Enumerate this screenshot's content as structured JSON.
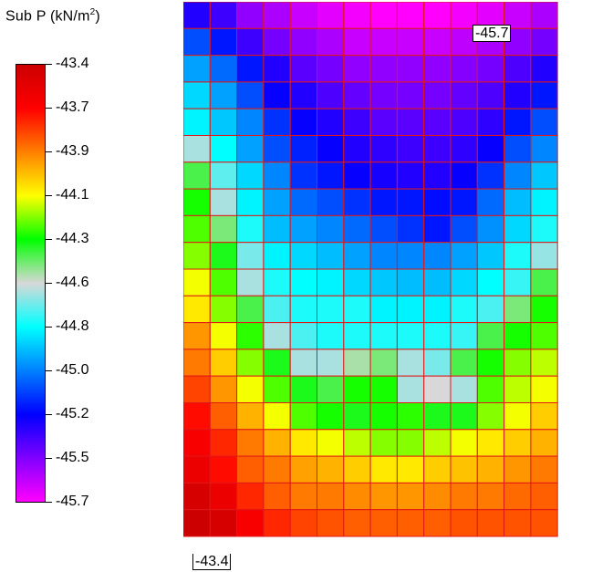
{
  "legend": {
    "title": "Sub P  (kN/m",
    "title_sup": "2",
    "title_end": ")",
    "ticks": [
      "-43.4",
      "-43.7",
      "-43.9",
      "-44.1",
      "-44.3",
      "-44.6",
      "-44.8",
      "-45.0",
      "-45.2",
      "-45.5",
      "-45.7"
    ],
    "gradient": [
      "#cc0000",
      "#ff0000",
      "#ff8000",
      "#ffff00",
      "#00ff00",
      "#d8d8d8",
      "#00ffff",
      "#0080ff",
      "#0000ff",
      "#8000ff",
      "#ff00ff"
    ]
  },
  "annotations": {
    "min_label": "-45.7",
    "max_label": "-43.4"
  },
  "chart_data": {
    "type": "heatmap",
    "title": "Sub P  (kN/m²)",
    "colorbar_range": [
      -45.7,
      -43.4
    ],
    "grid_line_color": "#e01818",
    "min_annotation": "-45.7",
    "max_annotation": "-43.4",
    "values": [
      [
        -45.3,
        -45.35,
        -45.5,
        -45.55,
        -45.6,
        -45.65,
        -45.68,
        -45.7,
        -45.7,
        -45.7,
        -45.68,
        -45.65,
        -45.6,
        -45.55
      ],
      [
        -45.1,
        -45.2,
        -45.35,
        -45.45,
        -45.5,
        -45.55,
        -45.6,
        -45.6,
        -45.6,
        -45.6,
        -45.58,
        -45.55,
        -45.5,
        -45.45
      ],
      [
        -44.95,
        -45.05,
        -45.2,
        -45.3,
        -45.4,
        -45.45,
        -45.5,
        -45.5,
        -45.5,
        -45.5,
        -45.48,
        -45.45,
        -45.38,
        -45.3
      ],
      [
        -44.85,
        -44.95,
        -45.1,
        -45.25,
        -45.3,
        -45.38,
        -45.42,
        -45.45,
        -45.45,
        -45.45,
        -45.42,
        -45.38,
        -45.3,
        -45.2
      ],
      [
        -44.8,
        -44.88,
        -45.0,
        -45.15,
        -45.25,
        -45.3,
        -45.35,
        -45.4,
        -45.4,
        -45.4,
        -45.38,
        -45.32,
        -45.2,
        -45.1
      ],
      [
        -44.6,
        -44.78,
        -44.95,
        -45.1,
        -45.18,
        -45.25,
        -45.3,
        -45.32,
        -45.35,
        -45.35,
        -45.32,
        -45.25,
        -45.1,
        -45.0
      ],
      [
        -44.4,
        -44.68,
        -44.85,
        -45.0,
        -45.15,
        -45.2,
        -45.25,
        -45.28,
        -45.3,
        -45.3,
        -45.25,
        -45.15,
        -45.0,
        -44.88
      ],
      [
        -44.3,
        -44.6,
        -44.8,
        -44.95,
        -45.05,
        -45.1,
        -45.15,
        -45.2,
        -45.2,
        -45.22,
        -45.2,
        -45.05,
        -44.9,
        -44.8
      ],
      [
        -44.25,
        -44.45,
        -44.75,
        -44.9,
        -44.95,
        -45.0,
        -45.05,
        -45.1,
        -45.15,
        -45.2,
        -45.1,
        -44.98,
        -44.85,
        -44.75
      ],
      [
        -44.2,
        -44.35,
        -44.65,
        -44.8,
        -44.85,
        -44.9,
        -44.95,
        -45.0,
        -45.0,
        -45.0,
        -44.95,
        -44.88,
        -44.75,
        -44.62
      ],
      [
        -44.1,
        -44.25,
        -44.6,
        -44.75,
        -44.78,
        -44.8,
        -44.85,
        -44.88,
        -44.9,
        -44.9,
        -44.85,
        -44.78,
        -44.72,
        -44.4
      ],
      [
        -44.05,
        -44.2,
        -44.4,
        -44.7,
        -44.75,
        -44.75,
        -44.75,
        -44.8,
        -44.8,
        -44.8,
        -44.75,
        -44.7,
        -44.45,
        -44.3
      ],
      [
        -43.9,
        -44.1,
        -44.28,
        -44.6,
        -44.7,
        -44.75,
        -44.75,
        -44.75,
        -44.75,
        -44.75,
        -44.72,
        -44.4,
        -44.3,
        -44.25
      ],
      [
        -43.85,
        -44.0,
        -44.2,
        -44.35,
        -44.6,
        -44.6,
        -44.5,
        -44.45,
        -44.6,
        -44.65,
        -44.4,
        -44.3,
        -44.2,
        -44.15
      ],
      [
        -43.75,
        -43.9,
        -44.1,
        -44.25,
        -44.35,
        -44.4,
        -44.3,
        -44.3,
        -44.6,
        -44.55,
        -44.6,
        -44.25,
        -44.15,
        -44.1
      ],
      [
        -43.65,
        -43.8,
        -43.95,
        -44.1,
        -44.25,
        -44.3,
        -44.35,
        -44.3,
        -44.28,
        -44.35,
        -44.35,
        -44.2,
        -44.1,
        -44.0
      ],
      [
        -43.6,
        -43.7,
        -43.85,
        -43.95,
        -44.05,
        -44.1,
        -44.15,
        -44.2,
        -44.2,
        -44.15,
        -44.1,
        -44.05,
        -44.0,
        -43.95
      ],
      [
        -43.55,
        -43.65,
        -43.8,
        -43.85,
        -43.92,
        -43.95,
        -44.0,
        -44.05,
        -44.05,
        -44.0,
        -43.98,
        -43.95,
        -43.9,
        -43.85
      ],
      [
        -43.45,
        -43.55,
        -43.7,
        -43.8,
        -43.85,
        -43.85,
        -43.88,
        -43.9,
        -43.9,
        -43.88,
        -43.85,
        -43.85,
        -43.82,
        -43.8
      ],
      [
        -43.4,
        -43.45,
        -43.6,
        -43.7,
        -43.75,
        -43.78,
        -43.8,
        -43.8,
        -43.8,
        -43.8,
        -43.78,
        -43.78,
        -43.78,
        -43.78
      ]
    ]
  }
}
